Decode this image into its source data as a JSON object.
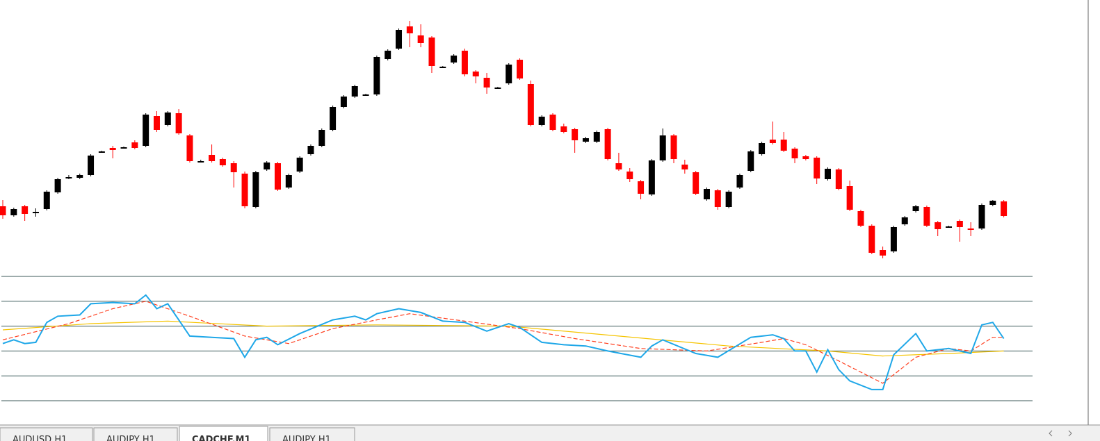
{
  "tabs": [
    "AUDUSD,H1",
    "AUDJPY,H1",
    "CADCHF,M1",
    "AUDJPY,H1"
  ],
  "chart_data": [
    {
      "type": "candlestick",
      "ylim": [
        0,
        400
      ],
      "up_color": "#000000",
      "down_color": "#ff0000",
      "open": [
        103,
        90,
        103,
        95,
        99,
        123,
        145,
        144,
        148,
        182,
        187,
        188,
        195,
        190,
        233,
        220,
        237,
        205,
        168,
        177,
        171,
        165,
        150,
        102,
        156,
        165,
        130,
        153,
        178,
        190,
        213,
        246,
        261,
        264,
        264,
        315,
        330,
        362,
        349,
        346,
        304,
        310,
        327,
        297,
        288,
        274,
        280,
        314,
        279,
        220,
        235,
        218,
        214,
        196,
        196,
        214,
        165,
        153,
        139,
        120,
        169,
        205,
        163,
        152,
        113,
        126,
        102,
        130,
        154,
        178,
        199,
        199,
        186,
        175,
        173,
        142,
        156,
        132,
        96,
        75,
        40,
        38,
        77,
        96,
        102,
        80,
        74,
        82,
        71,
        71,
        105,
        110
      ],
      "high": [
        112,
        101,
        105,
        100,
        126,
        144,
        148,
        150,
        178,
        183,
        190,
        189,
        198,
        237,
        240,
        240,
        243,
        207,
        170,
        192,
        173,
        168,
        153,
        154,
        168,
        167,
        150,
        175,
        192,
        215,
        248,
        263,
        278,
        265,
        320,
        329,
        359,
        370,
        365,
        348,
        305,
        322,
        330,
        299,
        295,
        275,
        309,
        316,
        284,
        234,
        237,
        222,
        216,
        203,
        212,
        216,
        180,
        158,
        141,
        171,
        215,
        207,
        170,
        154,
        130,
        128,
        126,
        150,
        184,
        196,
        225,
        210,
        188,
        177,
        175,
        159,
        158,
        140,
        98,
        77,
        45,
        75,
        89,
        105,
        104,
        82,
        75,
        84,
        80,
        107,
        112,
        112
      ],
      "low": [
        85,
        88,
        82,
        88,
        97,
        121,
        142,
        142,
        146,
        180,
        172,
        187,
        185,
        188,
        210,
        218,
        206,
        166,
        166,
        166,
        160,
        130,
        100,
        100,
        154,
        125,
        128,
        151,
        176,
        188,
        211,
        244,
        259,
        263,
        262,
        313,
        328,
        332,
        332,
        295,
        303,
        308,
        290,
        280,
        265,
        273,
        278,
        285,
        218,
        218,
        211,
        208,
        180,
        194,
        194,
        169,
        154,
        138,
        113,
        118,
        167,
        165,
        150,
        119,
        111,
        98,
        100,
        128,
        152,
        176,
        192,
        181,
        165,
        169,
        135,
        140,
        126,
        96,
        73,
        34,
        28,
        36,
        75,
        94,
        73,
        60,
        73,
        52,
        60,
        69,
        103,
        87
      ],
      "close": [
        90,
        99,
        92,
        95,
        124,
        142,
        145,
        148,
        176,
        182,
        184,
        188,
        187,
        235,
        213,
        238,
        208,
        168,
        168,
        168,
        162,
        152,
        103,
        152,
        166,
        127,
        148,
        173,
        190,
        213,
        246,
        261,
        276,
        264,
        318,
        327,
        357,
        352,
        338,
        305,
        304,
        320,
        293,
        290,
        274,
        274,
        307,
        287,
        220,
        232,
        213,
        210,
        198,
        201,
        210,
        171,
        156,
        142,
        121,
        169,
        205,
        171,
        156,
        121,
        128,
        102,
        124,
        148,
        182,
        194,
        194,
        183,
        172,
        171,
        143,
        157,
        128,
        98,
        75,
        36,
        32,
        73,
        87,
        103,
        75,
        70,
        74,
        73,
        69,
        105,
        111,
        89
      ]
    },
    {
      "type": "line",
      "xlim": [
        0,
        91
      ],
      "ylim": [
        0,
        100
      ],
      "levels": [
        0,
        20,
        40,
        60,
        80,
        100
      ],
      "series": [
        {
          "color": "#f5c400",
          "dash": false,
          "x": [
            0,
            8,
            15,
            24,
            34,
            46,
            56,
            66,
            75,
            80,
            86,
            91
          ],
          "values": [
            57,
            62,
            64,
            60,
            61,
            60,
            52,
            44,
            40,
            36,
            38,
            40
          ]
        },
        {
          "color": "#ff4020",
          "dash": true,
          "x": [
            0,
            6,
            10,
            13,
            17,
            22,
            26,
            30,
            34,
            37,
            42,
            47,
            52,
            58,
            64,
            69,
            71,
            73,
            76,
            80,
            83,
            86,
            88,
            90,
            91
          ],
          "values": [
            49,
            62,
            74,
            80,
            68,
            52,
            46,
            58,
            65,
            70,
            64,
            58,
            50,
            42,
            40,
            47,
            50,
            45,
            32,
            14,
            35,
            42,
            40,
            51,
            51
          ]
        },
        {
          "color": "#1ea7e8",
          "dash": false,
          "x": [
            0,
            1,
            2,
            3,
            4,
            5,
            7,
            8,
            10,
            12,
            13,
            14,
            15,
            17,
            19,
            21,
            22,
            23,
            24,
            25,
            27,
            30,
            32,
            33,
            34,
            36,
            38,
            40,
            42,
            44,
            46,
            47,
            49,
            51,
            53,
            55,
            58,
            59,
            60,
            63,
            65,
            68,
            70,
            71,
            72,
            73,
            74,
            75,
            76,
            77,
            79,
            80,
            81,
            83,
            84,
            86,
            88,
            89,
            90,
            91
          ],
          "values": [
            46,
            49,
            46,
            47,
            63,
            68,
            69,
            78,
            79,
            78,
            85,
            74,
            78,
            52,
            51,
            50,
            35,
            49,
            51,
            45,
            54,
            65,
            68,
            65,
            70,
            74,
            71,
            64,
            63,
            56,
            62,
            59,
            47,
            45,
            44,
            40,
            35,
            44,
            49,
            38,
            35,
            51,
            53,
            50,
            40,
            40,
            23,
            41,
            25,
            16,
            9,
            9,
            37,
            54,
            40,
            42,
            38,
            61,
            63,
            50
          ]
        }
      ]
    }
  ]
}
